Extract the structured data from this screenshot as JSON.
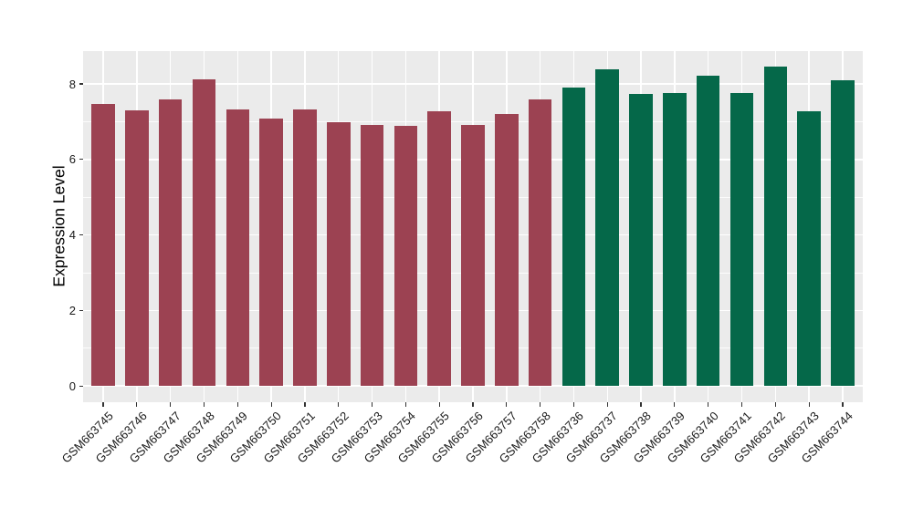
{
  "figure": {
    "kind": "expression-bar-chart"
  },
  "chart_data": {
    "type": "bar",
    "title": "",
    "xlabel": "",
    "ylabel": "Expression Level",
    "categories": [
      "GSM663745",
      "GSM663746",
      "GSM663747",
      "GSM663748",
      "GSM663749",
      "GSM663750",
      "GSM663751",
      "GSM663752",
      "GSM663753",
      "GSM663754",
      "GSM663755",
      "GSM663756",
      "GSM663757",
      "GSM663758",
      "GSM663736",
      "GSM663737",
      "GSM663738",
      "GSM663739",
      "GSM663740",
      "GSM663741",
      "GSM663742",
      "GSM663743",
      "GSM663744"
    ],
    "values": [
      7.48,
      7.29,
      7.6,
      8.12,
      7.33,
      7.09,
      7.32,
      6.99,
      6.92,
      6.9,
      7.27,
      6.91,
      7.2,
      7.6,
      7.9,
      8.39,
      7.73,
      7.76,
      8.22,
      7.76,
      8.45,
      7.27,
      8.09
    ],
    "group_of_bar": [
      "maroon",
      "maroon",
      "maroon",
      "maroon",
      "maroon",
      "maroon",
      "maroon",
      "maroon",
      "maroon",
      "maroon",
      "maroon",
      "maroon",
      "maroon",
      "maroon",
      "green",
      "green",
      "green",
      "green",
      "green",
      "green",
      "green",
      "green",
      "green"
    ],
    "group_colors": {
      "maroon": "#9c4252",
      "green": "#056849"
    },
    "yticks_major": [
      0,
      2,
      4,
      6,
      8
    ],
    "yticks_minor": [
      1,
      3,
      5,
      7
    ],
    "ylim_display": [
      -0.43,
      8.87
    ],
    "grid": true,
    "legend": "none",
    "plot_background": "#ebebeb",
    "gridline_color": "#ffffff",
    "axis_text_color": "#1a1a1a"
  }
}
